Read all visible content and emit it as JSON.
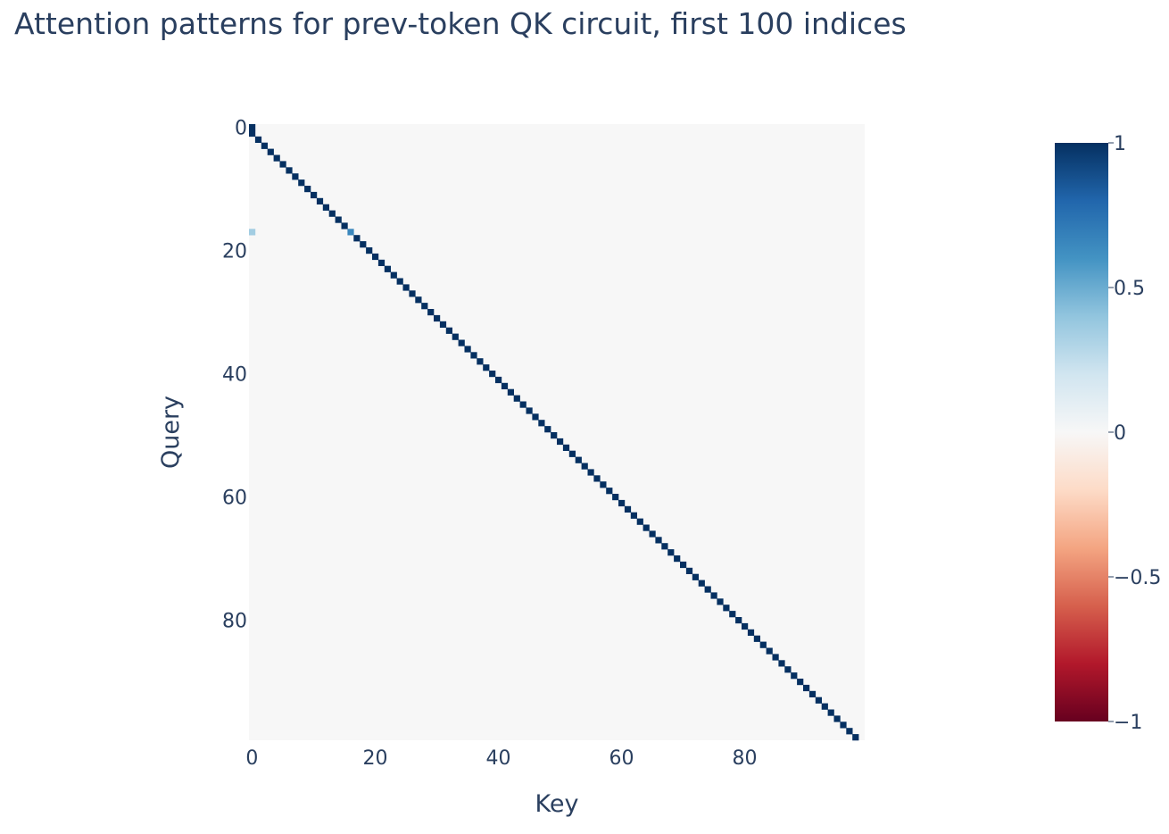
{
  "chart_data": {
    "type": "heatmap",
    "title": "Attention patterns for prev-token QK circuit, first 100 indices",
    "xlabel": "Key",
    "ylabel": "Query",
    "n": 100,
    "xlim": [
      0,
      99
    ],
    "ylim": [
      0,
      99
    ],
    "x_ticks": [
      0,
      20,
      40,
      60,
      80
    ],
    "y_ticks": [
      0,
      20,
      40,
      60,
      80
    ],
    "background_value": 0,
    "cells": {
      "description_rule": "query q attends to key q-1 with value 1; query 0 attends to key 0",
      "diagonal_offset": -1,
      "diagonal_value": 1,
      "extra_cells": [
        {
          "query": 0,
          "key": 0,
          "value": 1
        },
        {
          "query": 17,
          "key": 0,
          "value": 0.35
        },
        {
          "query": 17,
          "key": 16,
          "value": 0.65
        }
      ]
    },
    "colorscale": {
      "name": "RdBu",
      "zmin": -1,
      "zmax": 1,
      "stops": [
        [
          0,
          "#67001f"
        ],
        [
          0.1,
          "#b2182b"
        ],
        [
          0.2,
          "#d6604d"
        ],
        [
          0.3,
          "#f4a582"
        ],
        [
          0.4,
          "#fddbc7"
        ],
        [
          0.5,
          "#f7f7f7"
        ],
        [
          0.6,
          "#d1e5f0"
        ],
        [
          0.7,
          "#92c5de"
        ],
        [
          0.8,
          "#4393c3"
        ],
        [
          0.9,
          "#2166ac"
        ],
        [
          1,
          "#053061"
        ]
      ],
      "tick_values": [
        1,
        0.5,
        0,
        -0.5,
        -1
      ],
      "tick_labels": [
        "1",
        "0.5",
        "0",
        "−0.5",
        "−1"
      ]
    }
  }
}
